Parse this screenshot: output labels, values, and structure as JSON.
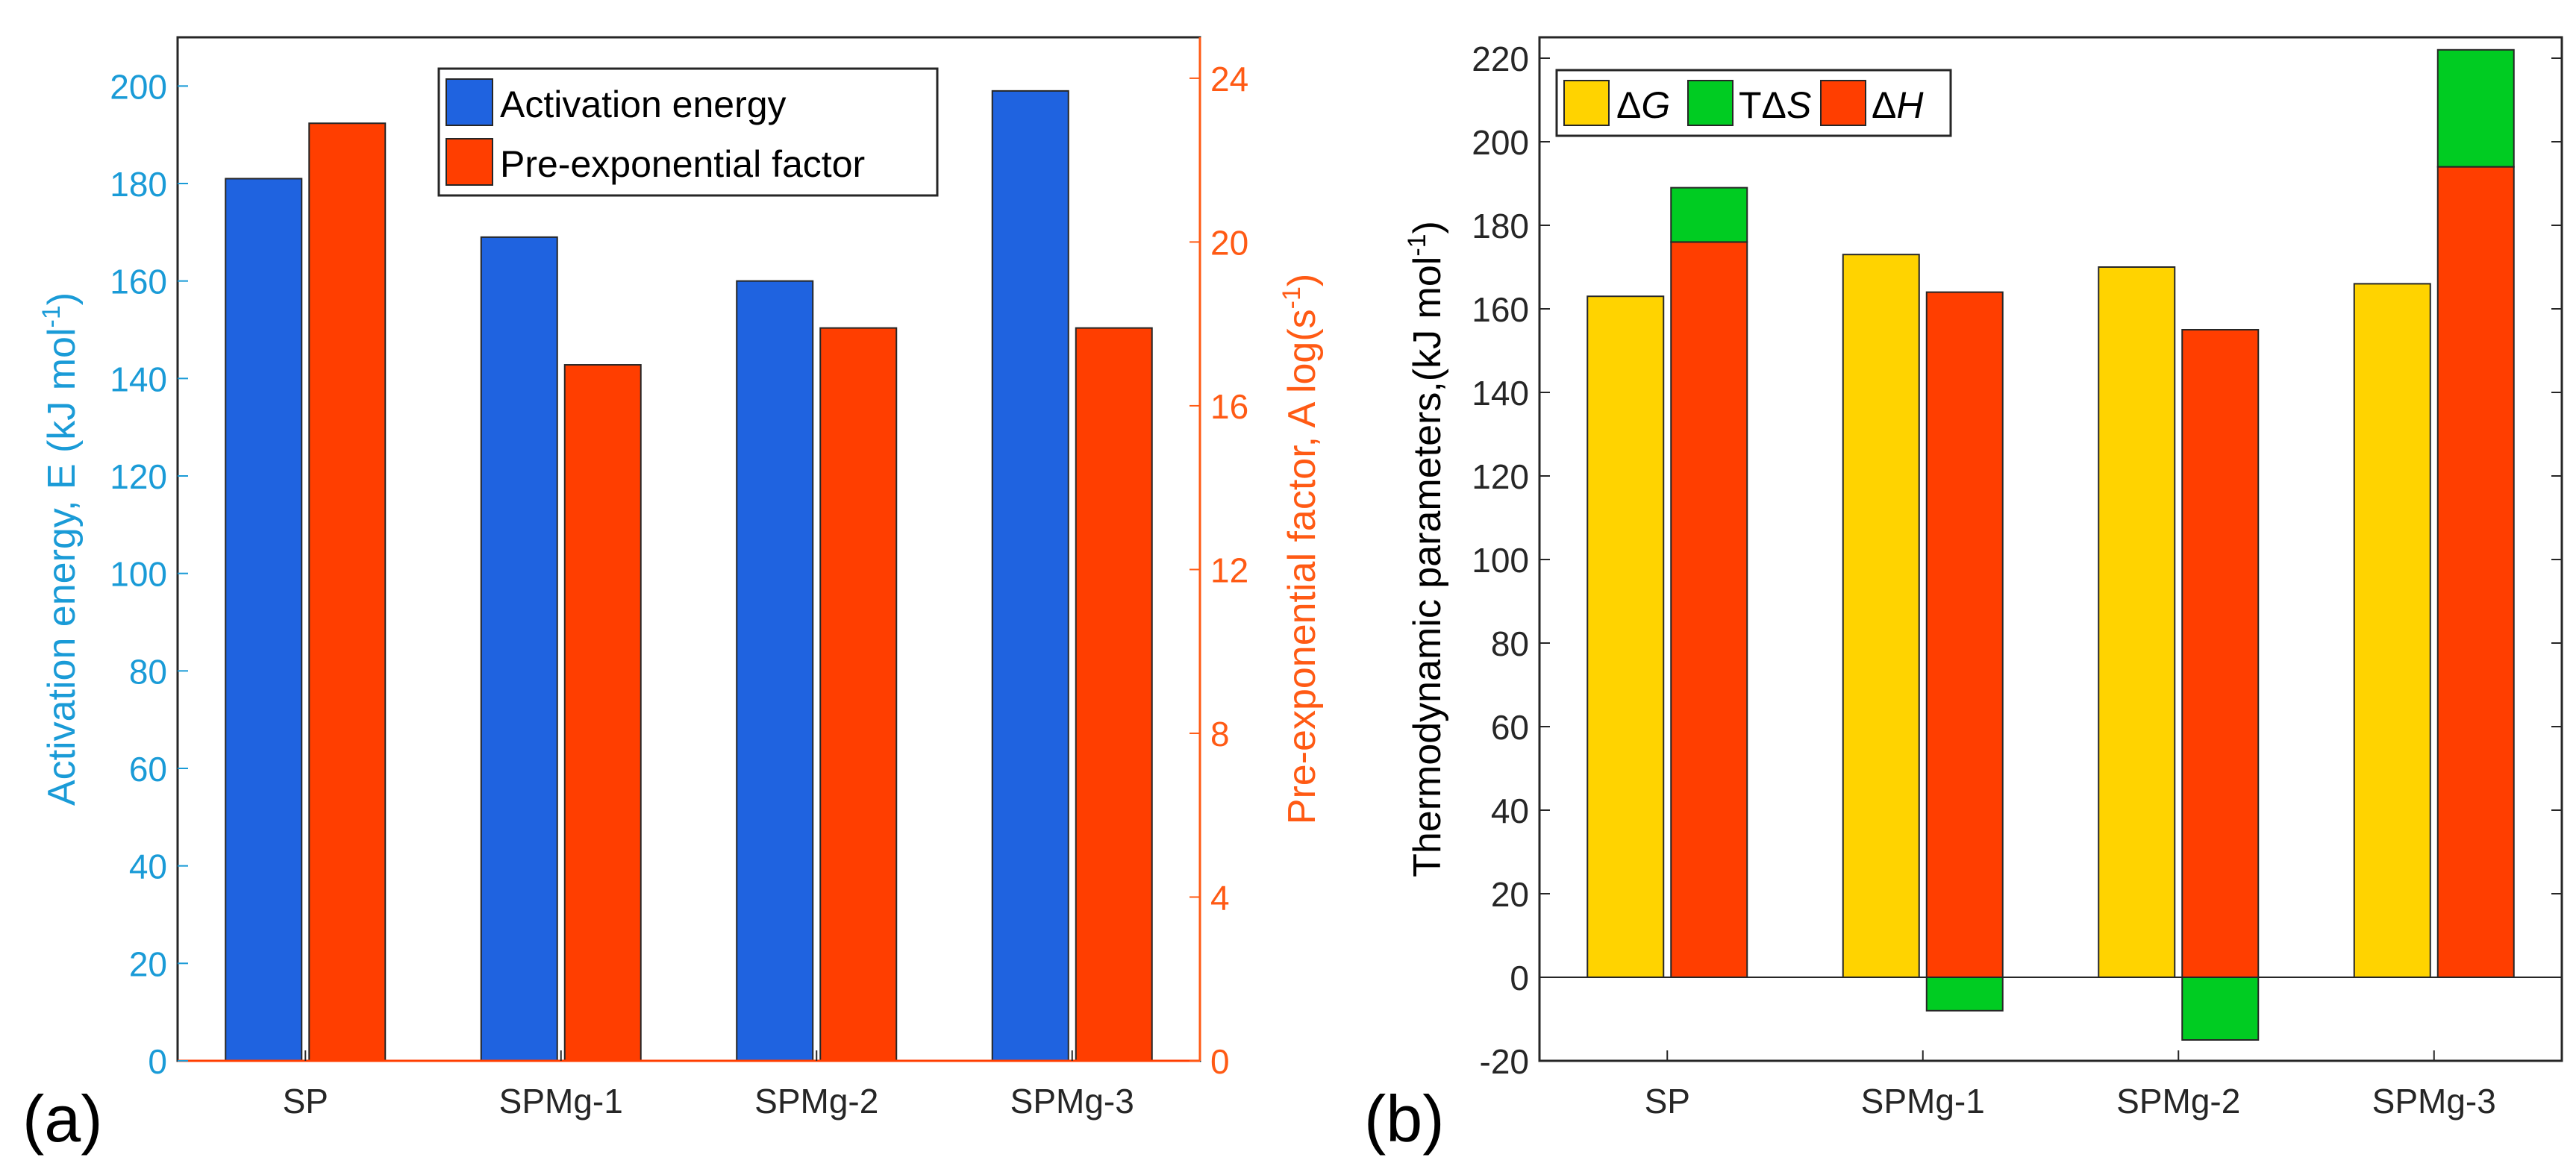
{
  "colors": {
    "activation": "#1f63e0",
    "preexp": "#ff3e00",
    "dG": "#ffd300",
    "TdS": "#00cc22",
    "dH": "#ff3e00",
    "left_axis": "#1a9bd7",
    "right_axis": "#ff5a14",
    "black": "#262626"
  },
  "chart_data": [
    {
      "panel_label": "(a)",
      "type": "bar",
      "categories": [
        "SP",
        "SPMg-1",
        "SPMg-2",
        "SPMg-3"
      ],
      "series": [
        {
          "name": "Activation energy",
          "axis": "left",
          "values": [
            181,
            169,
            160,
            199
          ]
        },
        {
          "name": "Pre-exponential factor",
          "axis": "right",
          "values": [
            22.9,
            17.0,
            17.9,
            17.9
          ]
        }
      ],
      "ylabel_left": "Activation energy, E (kJ mol",
      "ylabel_left_sup": "-1",
      "ylabel_left_end": ")",
      "ylim_left": [
        0,
        210
      ],
      "yticks_left": [
        "0",
        "20",
        "40",
        "60",
        "80",
        "100",
        "120",
        "140",
        "160",
        "180",
        "200"
      ],
      "ylabel_right": "Pre-exponential factor, A log(s",
      "ylabel_right_sup": "-1",
      "ylabel_right_end": ")",
      "ylim_right": [
        0,
        25
      ],
      "yticks_right": [
        "0",
        "4",
        "8",
        "12",
        "16",
        "20",
        "24"
      ],
      "legend": [
        "Activation energy",
        "Pre-exponential factor"
      ],
      "legend_position": "top-right"
    },
    {
      "panel_label": "(b)",
      "type": "bar",
      "categories": [
        "SP",
        "SPMg-1",
        "SPMg-2",
        "SPMg-3"
      ],
      "series": [
        {
          "name": "ΔG",
          "values": [
            163,
            173,
            170,
            166
          ]
        },
        {
          "name": "TΔS",
          "values": [
            13,
            -8,
            -15,
            28
          ]
        },
        {
          "name": "ΔH",
          "values": [
            176,
            164,
            155,
            194
          ]
        }
      ],
      "ylabel": "Thermodynamic parameters,(kJ mol",
      "ylabel_sup": "-1",
      "ylabel_end": ")",
      "ylim": [
        -20,
        225
      ],
      "yticks": [
        "-20",
        "0",
        "20",
        "40",
        "60",
        "80",
        "100",
        "120",
        "140",
        "160",
        "180",
        "200",
        "220"
      ],
      "legend": [
        {
          "prefix": "Δ",
          "var": "G"
        },
        {
          "prefix": "TΔ",
          "var": "S"
        },
        {
          "prefix": "Δ",
          "var": "H"
        }
      ],
      "legend_position": "top-left"
    }
  ]
}
